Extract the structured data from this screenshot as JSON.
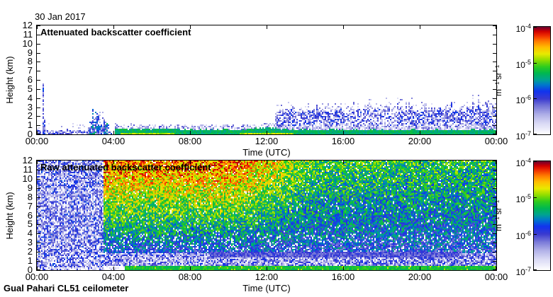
{
  "figure": {
    "date_title": "30 Jan 2017",
    "footer": "Gual Pahari CL51 ceilometer",
    "background": "#ffffff",
    "axis_color": "#000000"
  },
  "colormap": {
    "scale": "log",
    "range": [
      "1e-7",
      "1e-4"
    ],
    "stops": [
      [
        0.0,
        "#ffffff"
      ],
      [
        0.03,
        "#f2f2fc"
      ],
      [
        0.1,
        "#d9d9f5"
      ],
      [
        0.18,
        "#b0b0e8"
      ],
      [
        0.26,
        "#7878d8"
      ],
      [
        0.33,
        "#3a3ad0"
      ],
      [
        0.4,
        "#1133ee"
      ],
      [
        0.46,
        "#0077cc"
      ],
      [
        0.51,
        "#00a490"
      ],
      [
        0.57,
        "#00b850"
      ],
      [
        0.63,
        "#2ecc1e"
      ],
      [
        0.69,
        "#8edd00"
      ],
      [
        0.75,
        "#e8ea00"
      ],
      [
        0.81,
        "#ffc000"
      ],
      [
        0.87,
        "#ff7a00"
      ],
      [
        0.92,
        "#f03000"
      ],
      [
        0.96,
        "#d00000"
      ],
      [
        1.0,
        "#70002e"
      ]
    ]
  },
  "chart_data": [
    {
      "type": "heatmap",
      "title": "Attenuated backscatter coefficient",
      "xlabel": "Time (UTC)",
      "ylabel": "Height (km)",
      "x_ticks": [
        "00:00",
        "04:00",
        "08:00",
        "12:00",
        "16:00",
        "20:00",
        "00:00"
      ],
      "x_range_hours": [
        0,
        24
      ],
      "y_ticks": [
        "0",
        "1",
        "2",
        "3",
        "4",
        "5",
        "6",
        "7",
        "8",
        "9",
        "10",
        "11",
        "12"
      ],
      "y_range_km": [
        0,
        12
      ],
      "colorbar": {
        "labels": [
          {
            "m": "10",
            "e": "-4"
          },
          {
            "m": "10",
            "e": "-5"
          },
          {
            "m": "10",
            "e": "-6"
          },
          {
            "m": "10",
            "e": "-7"
          }
        ],
        "unit": "m⁻¹ sr⁻¹"
      },
      "regions": {
        "shallow_surface_noise": {
          "t": [
            0,
            2.95
          ],
          "height_top_km": [
            0.3,
            0.75
          ]
        },
        "narrow_spike": {
          "t": [
            0.3,
            0.42
          ],
          "height_top_km": 5.6
        },
        "convective_cluster": {
          "t": [
            2.7,
            3.95
          ],
          "main_top_km": 2.5,
          "spike_top_km": 4.1
        },
        "surface_aerosol_layer": {
          "t": [
            4.05,
            24
          ],
          "thickness_km": 0.55,
          "strong_spans_t": [
            [
              4.4,
              7.2
            ],
            [
              10.6,
              13.4
            ]
          ]
        },
        "elevated_layer": {
          "t": [
            12.45,
            24
          ],
          "bottom_km": 0.9,
          "top_km": [
            2.4,
            3.4
          ]
        }
      }
    },
    {
      "type": "heatmap",
      "title": "Raw attenuated backscatter coefficient",
      "xlabel": "Time (UTC)",
      "ylabel": "Height (km)",
      "x_ticks": [
        "00:00",
        "04:00",
        "08:00",
        "12:00",
        "16:00",
        "20:00",
        "00:00"
      ],
      "x_range_hours": [
        0,
        24
      ],
      "y_ticks": [
        "0",
        "1",
        "2",
        "3",
        "4",
        "5",
        "6",
        "7",
        "8",
        "9",
        "10",
        "11",
        "12"
      ],
      "y_range_km": [
        0,
        12
      ],
      "colorbar": {
        "labels": [
          {
            "m": "10",
            "e": "-4"
          },
          {
            "m": "10",
            "e": "-5"
          },
          {
            "m": "10",
            "e": "-6"
          },
          {
            "m": "10",
            "e": "-7"
          }
        ],
        "unit": "m⁻¹ sr⁻¹"
      },
      "regions": {
        "quiet_night_noise": {
          "t": [
            0,
            3.5
          ]
        },
        "transition_t": 3.5,
        "daytime_noise": {
          "t": [
            3.5,
            24
          ],
          "top_value_day": 0.88,
          "top_value_evening": 0.62,
          "day_end_t": 10.5,
          "evening_start_t": 14.5
        },
        "surface_band": {
          "t": [
            4.6,
            24
          ],
          "top_km": 0.45
        },
        "dark_band": {
          "t": [
            9,
            22
          ],
          "km": [
            1.35,
            2.05
          ]
        },
        "white_speckle_band": {
          "t": [
            4.5,
            15
          ],
          "km": [
            0.6,
            1.8
          ]
        }
      }
    }
  ]
}
